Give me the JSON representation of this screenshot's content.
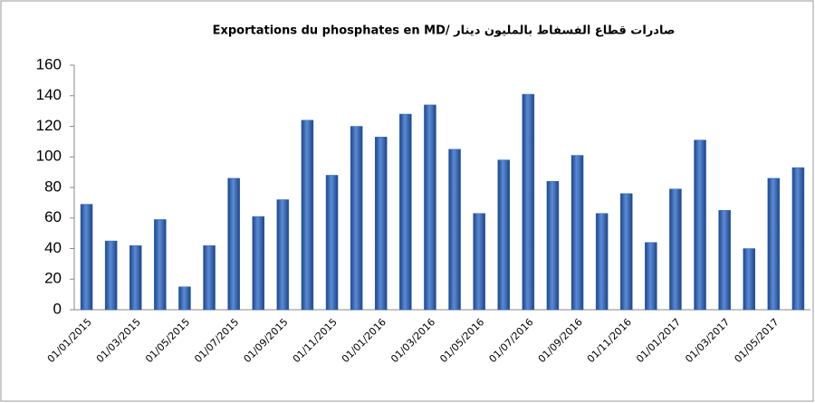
{
  "chart_data": {
    "type": "bar",
    "title": "Exportations du phosphates en MD/ صادرات قطاع الفسفاط بالمليون دينار",
    "categories": [
      "01/01/2015",
      null,
      "01/03/2015",
      null,
      "01/05/2015",
      null,
      "01/07/2015",
      null,
      "01/09/2015",
      null,
      "01/11/2015",
      null,
      "01/01/2016",
      null,
      "01/03/2016",
      null,
      "01/05/2016",
      null,
      "01/07/2016",
      null,
      "01/09/2016",
      null,
      "01/11/2016",
      null,
      "01/01/2017",
      null,
      "01/03/2017",
      null,
      "01/05/2017",
      null
    ],
    "values": [
      69,
      45,
      42,
      59,
      15,
      42,
      86,
      61,
      72,
      124,
      88,
      120,
      113,
      128,
      134,
      105,
      63,
      98,
      141,
      84,
      101,
      63,
      76,
      44,
      79,
      111,
      65,
      40,
      86,
      93
    ],
    "color": "#2f62ad",
    "ylim": [
      0,
      160
    ],
    "yticks": [
      0,
      20,
      40,
      60,
      80,
      100,
      120,
      140,
      160
    ],
    "grid": false
  }
}
